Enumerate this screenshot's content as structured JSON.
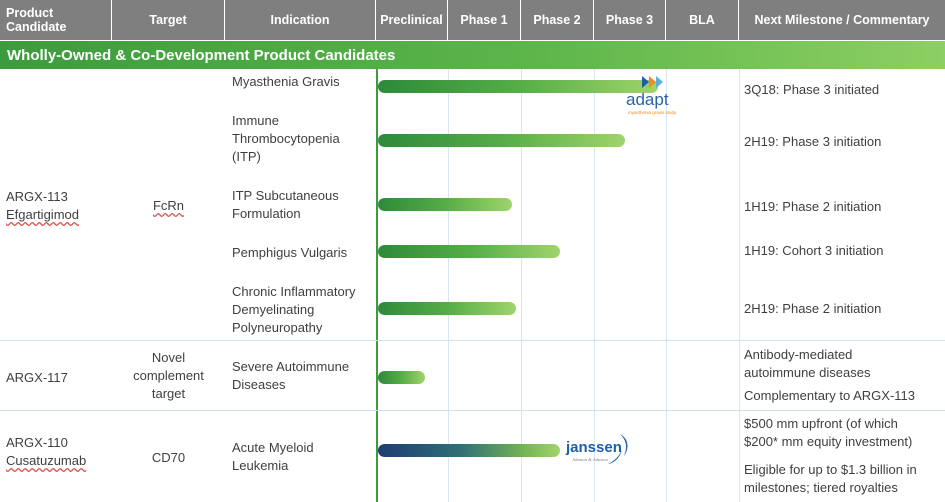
{
  "header": {
    "product_candidate": "Product Candidate",
    "target": "Target",
    "indication": "Indication",
    "preclinical": "Preclinical",
    "phase1": "Phase 1",
    "phase2": "Phase 2",
    "phase3": "Phase 3",
    "bla": "BLA",
    "milestone": "Next Milestone / Commentary"
  },
  "section_title": "Wholly-Owned & Co-Development Product Candidates",
  "colors": {
    "header_bg": "#7f7f7f",
    "section_green": "#4aa84a",
    "bar_green": "#55ad46",
    "bar_blue": "#1f3c72",
    "grid_line": "#cfe2f0"
  },
  "candidates": [
    {
      "name_line1": "ARGX-113",
      "name_line2": "Efgartigimod",
      "target": "FcRn",
      "indications": [
        {
          "line1": "Myasthenia Gravis",
          "line2": "",
          "line3": "",
          "progress_stage": 3.85,
          "milestone": "3Q18: Phase 3 initiated"
        },
        {
          "line1": "Immune",
          "line2": "Thrombocytopenia",
          "line3": "(ITP)",
          "progress_stage": 3.4,
          "milestone": "2H19: Phase 3 initiation"
        },
        {
          "line1": "ITP Subcutaneous",
          "line2": "Formulation",
          "line3": "",
          "progress_stage": 1.85,
          "milestone": "1H19: Phase 2 initiation"
        },
        {
          "line1": "Pemphigus Vulgaris",
          "line2": "",
          "line3": "",
          "progress_stage": 2.5,
          "milestone": "1H19: Cohort 3 initiation"
        },
        {
          "line1": "Chronic Inflammatory",
          "line2": "Demyelinating",
          "line3": "Polyneuropathy",
          "progress_stage": 1.9,
          "milestone": "2H19: Phase 2 initiation"
        }
      ]
    },
    {
      "name_line1": "ARGX-117",
      "target_line1": "Novel",
      "target_line2": "complement",
      "target_line3": "target",
      "indication_line1": "Severe Autoimmune",
      "indication_line2": "Diseases",
      "progress_stage": 0.65,
      "milestone_line1": "Antibody-mediated",
      "milestone_line2": "autoimmune diseases",
      "milestone_line3": "Complementary to ARGX-113"
    },
    {
      "name_line1": "ARGX-110",
      "name_line2": "Cusatuzumab",
      "target": "CD70",
      "indication_line1": "Acute Myeloid",
      "indication_line2": "Leukemia",
      "progress_stage": 2.5,
      "milestone_line1": "$500 mm upfront (of which",
      "milestone_line2": "$200* mm equity investment)",
      "milestone_line3": "Eligible for up to $1.3 billion in",
      "milestone_line4": "milestones; tiered royalties"
    }
  ],
  "partners": {
    "adapt": {
      "name": "adapt",
      "subtitle": "myasthenia gravis study"
    },
    "janssen": {
      "name": "janssen",
      "subtitle": "Johnson & Johnson"
    }
  }
}
